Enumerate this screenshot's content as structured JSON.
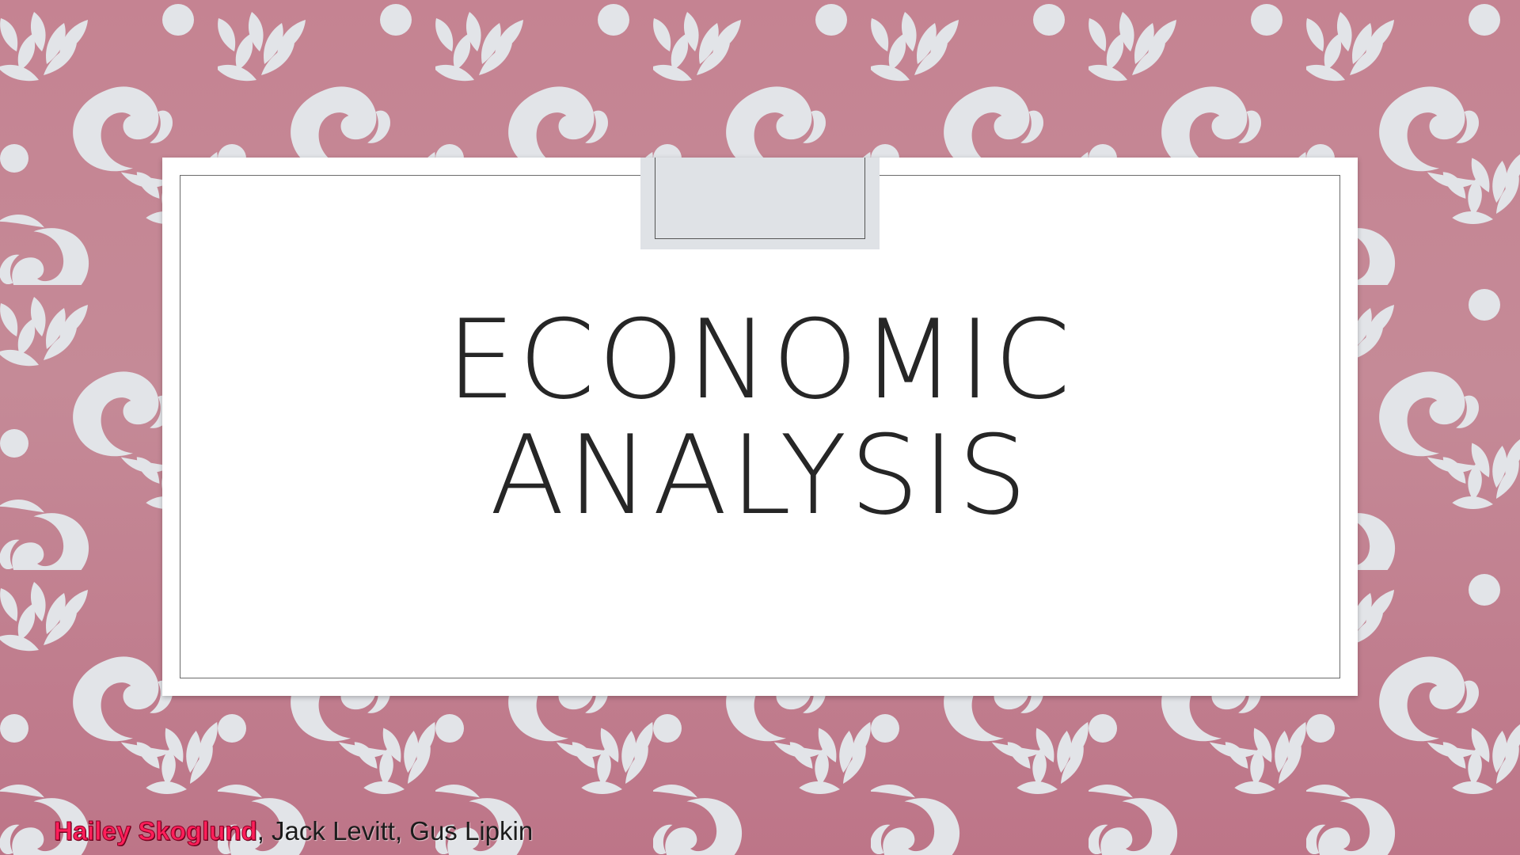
{
  "slide": {
    "title_line1": "ECONOMIC",
    "title_line2": "ANALYSIS",
    "authors": {
      "highlighted": "Hailey Skoglund",
      "rest": ", Jack Levitt, Gus Lipkin"
    }
  },
  "colors": {
    "background": "#c58592",
    "pattern": "#e2e4e8",
    "title_text": "#262626",
    "highlight_author": "#ff1f5a"
  }
}
